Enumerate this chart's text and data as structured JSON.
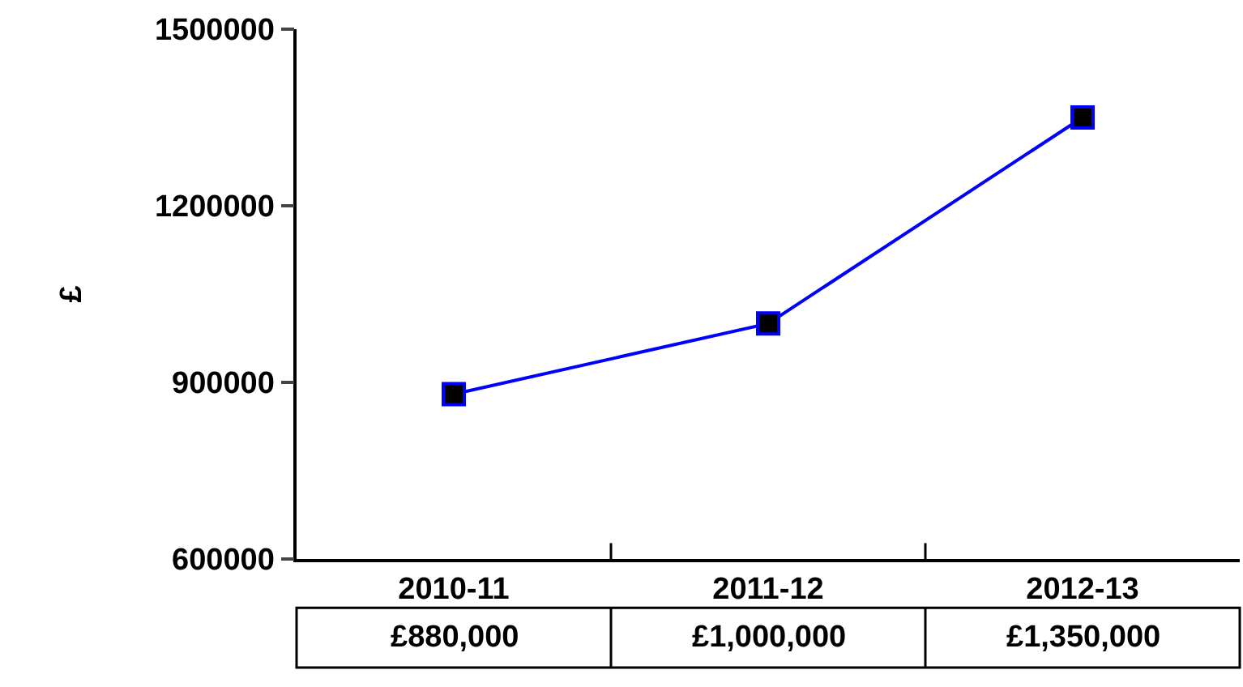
{
  "chart_data": {
    "type": "line",
    "ylabel": "£",
    "categories": [
      "2010-11",
      "2011-12",
      "2012-13"
    ],
    "series": [
      {
        "color": "#0000ff",
        "values": [
          880000,
          1000000,
          1350000
        ],
        "value_labels": [
          "£880,000",
          "£1,000,000",
          "£1,350,000"
        ]
      }
    ],
    "ylim": [
      600000,
      1500000
    ],
    "yticks": [
      600000,
      900000,
      1200000,
      1500000
    ],
    "legend": false,
    "marker": "square",
    "line_style": "solid"
  }
}
